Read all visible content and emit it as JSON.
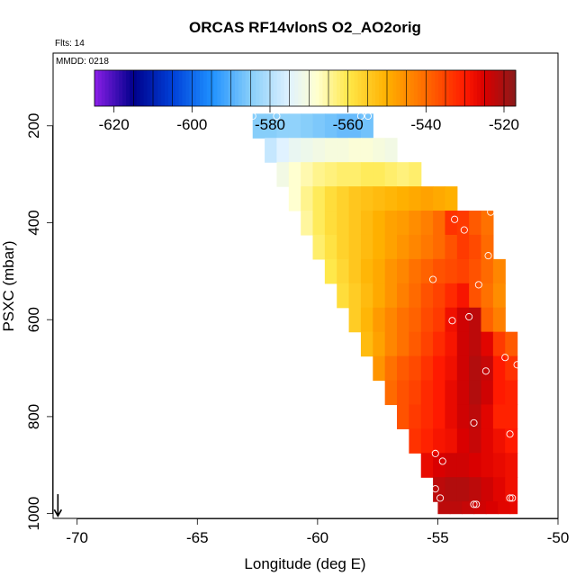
{
  "chart_data": {
    "type": "heatmap",
    "title": "ORCAS RF14vlonS O2_AO2orig",
    "flights_note": "Flts: 14",
    "date_note": "MMDD: 0218",
    "xlabel": "Longitude (deg E)",
    "ylabel": "PSXC (mbar)",
    "xlim": [
      -71,
      -50
    ],
    "ylim": [
      1010,
      50
    ],
    "x_ticks": [
      -70,
      -65,
      -60,
      -55,
      -50
    ],
    "y_ticks": [
      200,
      400,
      600,
      800,
      1000
    ],
    "color_scale": {
      "min": -625,
      "max": -517,
      "ticks": [
        -620,
        -600,
        -580,
        -560,
        -540,
        -520
      ],
      "stops": [
        {
          "v": -625,
          "color": "#8b1fe8"
        },
        {
          "v": -615,
          "color": "#00008b"
        },
        {
          "v": -605,
          "color": "#0040d8"
        },
        {
          "v": -595,
          "color": "#1e90ff"
        },
        {
          "v": -585,
          "color": "#87cefa"
        },
        {
          "v": -575,
          "color": "#e0f2ff"
        },
        {
          "v": -568,
          "color": "#ffffd0"
        },
        {
          "v": -560,
          "color": "#ffe84a"
        },
        {
          "v": -550,
          "color": "#ffb000"
        },
        {
          "v": -540,
          "color": "#ff6a00"
        },
        {
          "v": -530,
          "color": "#ff1a00"
        },
        {
          "v": -525,
          "color": "#d90000"
        },
        {
          "v": -517,
          "color": "#8b1a1a"
        }
      ]
    },
    "rows": [
      {
        "p_top": 175,
        "p_bot": 225,
        "x_start": -62.7,
        "x_end": -57.7,
        "dx": 0.5,
        "values": [
          -585,
          -585,
          -584,
          -584,
          -585,
          -586,
          -587,
          -588,
          -588,
          -587
        ]
      },
      {
        "p_top": 225,
        "p_bot": 275,
        "x_start": -62.2,
        "x_end": -56.7,
        "dx": 0.5,
        "values": [
          -578,
          -575,
          -573,
          -572,
          -571,
          -570,
          -570,
          -569,
          -569,
          -570,
          -571
        ]
      },
      {
        "p_top": 275,
        "p_bot": 325,
        "x_start": -61.7,
        "x_end": -55.7,
        "dx": 0.5,
        "values": [
          -571,
          -568,
          -566,
          -564,
          -563,
          -562,
          -562,
          -561,
          -561,
          -562,
          -563,
          -562
        ]
      },
      {
        "p_top": 325,
        "p_bot": 375,
        "x_start": -61.2,
        "x_end": -54.2,
        "dx": 0.5,
        "values": [
          -568,
          -564,
          -561,
          -558,
          -556,
          -554,
          -553,
          -552,
          -551,
          -550,
          -549,
          -548,
          -549,
          -550
        ]
      },
      {
        "p_top": 375,
        "p_bot": 425,
        "x_start": -60.7,
        "x_end": -52.7,
        "dx": 0.5,
        "values": [
          -565,
          -561,
          -558,
          -556,
          -554,
          -552,
          -550,
          -548,
          -547,
          -545,
          -543,
          -540,
          -533,
          -534,
          -538,
          -541
        ]
      },
      {
        "p_top": 425,
        "p_bot": 475,
        "x_start": -60.2,
        "x_end": -52.7,
        "dx": 0.5,
        "values": [
          -562,
          -559,
          -556,
          -554,
          -552,
          -550,
          -548,
          -546,
          -544,
          -542,
          -540,
          -537,
          -534,
          -536,
          -540
        ]
      },
      {
        "p_top": 475,
        "p_bot": 525,
        "x_start": -59.7,
        "x_end": -52.2,
        "dx": 0.5,
        "values": [
          -560,
          -557,
          -554,
          -551,
          -549,
          -546,
          -544,
          -541,
          -539,
          -537,
          -536,
          -535,
          -537,
          -540,
          -544
        ]
      },
      {
        "p_top": 525,
        "p_bot": 575,
        "x_start": -59.2,
        "x_end": -52.2,
        "dx": 0.5,
        "values": [
          -558,
          -555,
          -552,
          -549,
          -546,
          -543,
          -540,
          -537,
          -535,
          -532,
          -529,
          -537,
          -541,
          -545
        ]
      },
      {
        "p_top": 575,
        "p_bot": 625,
        "x_start": -58.7,
        "x_end": -52.2,
        "dx": 0.5,
        "values": [
          -555,
          -551,
          -547,
          -544,
          -541,
          -539,
          -536,
          -534,
          -528,
          -524,
          -522,
          -539,
          -543
        ]
      },
      {
        "p_top": 625,
        "p_bot": 675,
        "x_start": -58.2,
        "x_end": -51.7,
        "dx": 0.5,
        "values": [
          -552,
          -548,
          -544,
          -541,
          -538,
          -535,
          -532,
          -529,
          -524,
          -522,
          -526,
          -534,
          -538
        ]
      },
      {
        "p_top": 675,
        "p_bot": 725,
        "x_start": -57.7,
        "x_end": -51.7,
        "dx": 0.5,
        "values": [
          -546,
          -541,
          -538,
          -536,
          -533,
          -530,
          -528,
          -524,
          -521,
          -523,
          -530,
          -533
        ]
      },
      {
        "p_top": 725,
        "p_bot": 775,
        "x_start": -57.2,
        "x_end": -51.7,
        "dx": 0.5,
        "values": [
          -540,
          -537,
          -535,
          -532,
          -530,
          -527,
          -524,
          -521,
          -524,
          -530,
          -531
        ]
      },
      {
        "p_top": 775,
        "p_bot": 825,
        "x_start": -56.7,
        "x_end": -51.7,
        "dx": 0.5,
        "values": [
          -537,
          -534,
          -532,
          -530,
          -527,
          -524,
          -522,
          -526,
          -531,
          -531
        ]
      },
      {
        "p_top": 825,
        "p_bot": 875,
        "x_start": -56.2,
        "x_end": -51.7,
        "dx": 0.5,
        "values": [
          -533,
          -531,
          -529,
          -528,
          -525,
          -523,
          -526,
          -528,
          -530
        ]
      },
      {
        "p_top": 875,
        "p_bot": 925,
        "x_start": -55.7,
        "x_end": -51.7,
        "dx": 0.5,
        "values": [
          -527,
          -525,
          -524,
          -524,
          -525,
          -526,
          -527,
          -528
        ]
      },
      {
        "p_top": 925,
        "p_bot": 975,
        "x_start": -55.2,
        "x_end": -51.7,
        "dx": 0.5,
        "values": [
          -522,
          -521,
          -521,
          -522,
          -524,
          -526,
          -528
        ]
      },
      {
        "p_top": 975,
        "p_bot": 1000,
        "x_start": -55.0,
        "x_end": -51.7,
        "dx": 0.5,
        "values": [
          -522,
          -522,
          -523,
          -524,
          -525,
          -526,
          -527
        ]
      }
    ],
    "markers": [
      [
        -62.7,
        180
      ],
      [
        -61.7,
        180
      ],
      [
        -58.2,
        180
      ],
      [
        -57.9,
        180
      ],
      [
        -52.8,
        378
      ],
      [
        -54.3,
        393
      ],
      [
        -53.9,
        415
      ],
      [
        -52.9,
        468
      ],
      [
        -55.2,
        517
      ],
      [
        -53.3,
        528
      ],
      [
        -53.7,
        594
      ],
      [
        -54.4,
        602
      ],
      [
        -52.2,
        678
      ],
      [
        -51.7,
        693
      ],
      [
        -53.0,
        706
      ],
      [
        -53.5,
        813
      ],
      [
        -52.0,
        836
      ],
      [
        -55.1,
        876
      ],
      [
        -54.8,
        892
      ],
      [
        -55.1,
        949
      ],
      [
        -54.9,
        968
      ],
      [
        -51.9,
        968
      ],
      [
        -52.0,
        968
      ],
      [
        -53.4,
        981
      ],
      [
        -53.5,
        981
      ]
    ],
    "arrow": {
      "x": -70.8,
      "p_top": 960,
      "p_bot": 1005
    }
  }
}
